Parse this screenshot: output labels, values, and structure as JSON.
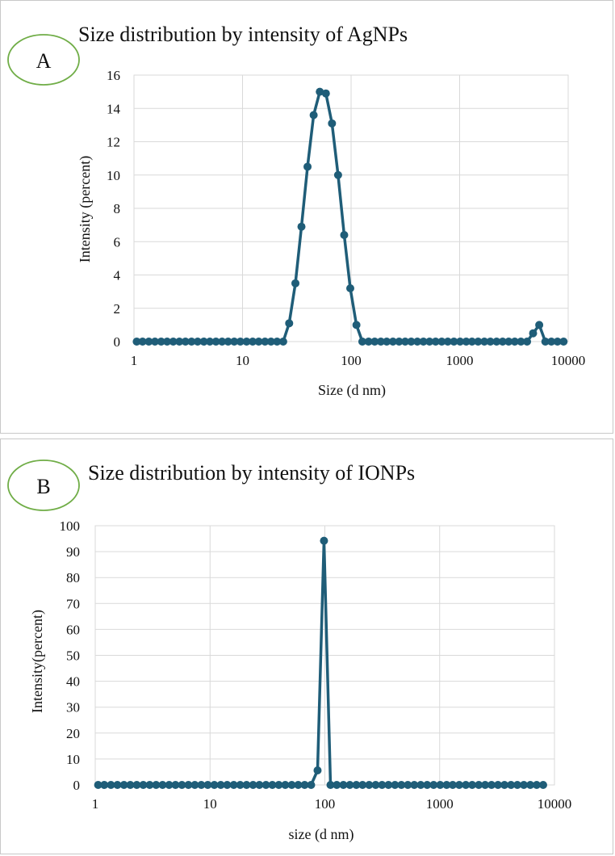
{
  "chart_data": [
    {
      "type": "line",
      "panel_letter": "A",
      "title": "Size distribution  by intensity of AgNPs",
      "xlabel": "Size (d nm)",
      "ylabel": "Intensity (percent)",
      "x_scale": "log",
      "xlim": [
        1,
        10000
      ],
      "ylim": [
        0,
        16
      ],
      "x_ticks": [
        1,
        10,
        100,
        1000,
        10000
      ],
      "x_tick_labels": [
        "1",
        "10",
        "100",
        "1000",
        "10000"
      ],
      "y_ticks": [
        0,
        2,
        4,
        6,
        8,
        10,
        12,
        14,
        16
      ],
      "y_tick_labels": [
        "0",
        "2",
        "4",
        "6",
        "8",
        "10",
        "12",
        "14",
        "16"
      ],
      "grid": true,
      "color": "#1f5d78",
      "series": [
        {
          "x": [
            1.06,
            1.2,
            1.37,
            1.56,
            1.78,
            2.02,
            2.3,
            2.62,
            2.98,
            3.39,
            3.86,
            4.4,
            5,
            5.69,
            6.48,
            7.37,
            8.39,
            9.55,
            10.9,
            12.4,
            14.1,
            16.1,
            18.3,
            20.8,
            23.7,
            26.9,
            30.7,
            34.9,
            39.7,
            45.2,
            51.5,
            58.6,
            66.7,
            75.9,
            86.4,
            98.3,
            112,
            127,
            145,
            165,
            188,
            213,
            243,
            277,
            315,
            358,
            408,
            464,
            528,
            601,
            684,
            778,
            886,
            1010,
            1150,
            1300,
            1480,
            1690,
            1920,
            2190,
            2490,
            2830,
            3220,
            3670,
            4180,
            4750,
            5410,
            6160,
            7000,
            7970,
            9070
          ],
          "y": [
            0,
            0,
            0,
            0,
            0,
            0,
            0,
            0,
            0,
            0,
            0,
            0,
            0,
            0,
            0,
            0,
            0,
            0,
            0,
            0,
            0,
            0,
            0,
            0,
            0,
            1.1,
            3.5,
            6.9,
            10.5,
            13.6,
            15,
            14.9,
            13.1,
            10,
            6.4,
            3.2,
            1,
            0,
            0,
            0,
            0,
            0,
            0,
            0,
            0,
            0,
            0,
            0,
            0,
            0,
            0,
            0,
            0,
            0,
            0,
            0,
            0,
            0,
            0,
            0,
            0,
            0,
            0,
            0,
            0,
            0.5,
            1,
            0,
            0,
            0,
            0
          ]
        }
      ]
    },
    {
      "type": "line",
      "panel_letter": "B",
      "title": "Size distribution by intensity of IONPs",
      "xlabel": "size (d nm)",
      "ylabel": "Intensity(percent)",
      "x_scale": "log",
      "xlim": [
        1,
        10000
      ],
      "ylim": [
        0,
        100
      ],
      "x_ticks": [
        1,
        10,
        100,
        1000,
        10000
      ],
      "x_tick_labels": [
        "1",
        "10",
        "100",
        "1000",
        "10000"
      ],
      "y_ticks": [
        0,
        10,
        20,
        30,
        40,
        50,
        60,
        70,
        80,
        90,
        100
      ],
      "y_tick_labels": [
        "0",
        "10",
        "20",
        "30",
        "40",
        "50",
        "60",
        "70",
        "80",
        "90",
        "100"
      ],
      "grid": true,
      "color": "#1f5d78",
      "series": [
        {
          "x": [
            1.06,
            1.2,
            1.37,
            1.56,
            1.78,
            2.02,
            2.3,
            2.62,
            2.98,
            3.39,
            3.86,
            4.4,
            5,
            5.69,
            6.48,
            7.37,
            8.39,
            9.55,
            10.9,
            12.4,
            14.1,
            16.1,
            18.3,
            20.8,
            23.7,
            26.9,
            30.7,
            34.9,
            39.7,
            45.2,
            51.5,
            58.6,
            66.7,
            75.9,
            86.4,
            98.3,
            112,
            127,
            145,
            165,
            188,
            213,
            243,
            277,
            315,
            358,
            408,
            464,
            528,
            601,
            684,
            778,
            886,
            1010,
            1150,
            1300,
            1480,
            1690,
            1920,
            2190,
            2490,
            2830,
            3220,
            3670,
            4180,
            4750,
            5410,
            6160,
            7000,
            7970
          ],
          "y": [
            0,
            0,
            0,
            0,
            0,
            0,
            0,
            0,
            0,
            0,
            0,
            0,
            0,
            0,
            0,
            0,
            0,
            0,
            0,
            0,
            0,
            0,
            0,
            0,
            0,
            0,
            0,
            0,
            0,
            0,
            0,
            0,
            0,
            0,
            5.6,
            94.2,
            0,
            0,
            0,
            0,
            0,
            0,
            0,
            0,
            0,
            0,
            0,
            0,
            0,
            0,
            0,
            0,
            0,
            0,
            0,
            0,
            0,
            0,
            0,
            0,
            0,
            0,
            0,
            0,
            0,
            0,
            0,
            0,
            0,
            0
          ]
        }
      ]
    }
  ]
}
